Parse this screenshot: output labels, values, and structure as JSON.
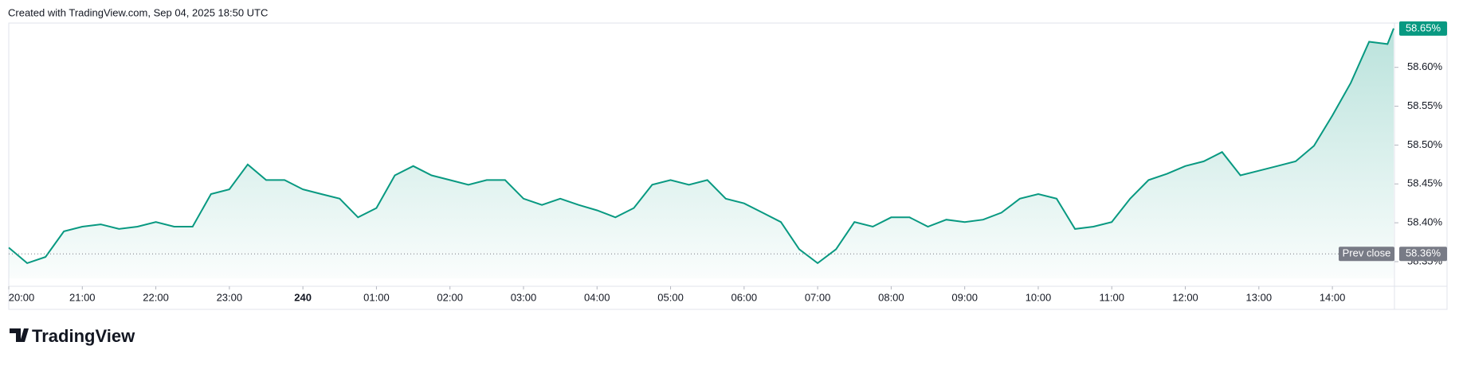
{
  "header": "Created with TradingView.com, Sep 04, 2025 18:50 UTC",
  "brand": "TradingView",
  "chart_data": {
    "type": "area",
    "color": "#089981",
    "x": [
      0,
      15,
      30,
      45,
      60,
      75,
      90,
      105,
      120,
      135,
      150,
      165,
      180,
      195,
      210,
      225,
      240,
      255,
      270,
      285,
      300,
      315,
      330,
      345,
      360,
      375,
      390,
      405,
      420,
      435,
      450,
      465,
      480,
      495,
      510,
      525,
      540,
      555,
      570,
      585,
      600,
      615,
      630,
      645,
      660,
      675,
      690,
      705,
      720,
      735,
      750,
      765,
      780,
      795,
      810,
      825,
      840,
      855,
      870,
      885,
      900,
      915,
      930,
      945,
      960,
      975,
      990,
      1005,
      1020,
      1035,
      1050,
      1065,
      1080,
      1095,
      1110,
      1125,
      1130
    ],
    "values": [
      58.368,
      58.348,
      58.356,
      58.389,
      58.395,
      58.398,
      58.392,
      58.395,
      58.401,
      58.395,
      58.395,
      58.437,
      58.443,
      58.475,
      58.455,
      58.455,
      58.443,
      58.437,
      58.431,
      58.407,
      58.419,
      58.461,
      58.473,
      58.461,
      58.455,
      58.449,
      58.455,
      58.455,
      58.431,
      58.423,
      58.431,
      58.423,
      58.416,
      58.407,
      58.419,
      58.449,
      58.455,
      58.449,
      58.455,
      58.431,
      58.425,
      58.413,
      58.401,
      58.366,
      58.348,
      58.366,
      58.401,
      58.395,
      58.407,
      58.407,
      58.395,
      58.404,
      58.401,
      58.404,
      58.413,
      58.431,
      58.437,
      58.431,
      58.392,
      58.395,
      58.401,
      58.431,
      58.455,
      58.463,
      58.473,
      58.479,
      58.491,
      58.461,
      58.467,
      58.473,
      58.479,
      58.499,
      58.538,
      58.58,
      58.633,
      58.63,
      58.65
    ],
    "last_label": "58.65%",
    "prev_close": {
      "label": "Prev close",
      "value": 58.36,
      "value_label": "58.36%"
    },
    "xlim": [
      0,
      1130
    ],
    "xticks": [
      {
        "value": 0,
        "label": "20:00"
      },
      {
        "value": 60,
        "label": "21:00"
      },
      {
        "value": 120,
        "label": "22:00"
      },
      {
        "value": 180,
        "label": "23:00"
      },
      240,
      {
        "value": 300,
        "label": "01:00"
      },
      {
        "value": 360,
        "label": "02:00"
      },
      {
        "value": 420,
        "label": "03:00"
      },
      {
        "value": 480,
        "label": "04:00"
      },
      {
        "value": 540,
        "label": "05:00"
      },
      {
        "value": 600,
        "label": "06:00"
      },
      {
        "value": 660,
        "label": "07:00"
      },
      {
        "value": 720,
        "label": "08:00"
      },
      {
        "value": 780,
        "label": "09:00"
      },
      {
        "value": 840,
        "label": "10:00"
      },
      {
        "value": 900,
        "label": "11:00"
      },
      {
        "value": 960,
        "label": "12:00"
      },
      {
        "value": 1020,
        "label": "13:00"
      },
      {
        "value": 1080,
        "label": "14:00"
      }
    ],
    "ylim": [
      58.3285,
      58.657
    ],
    "yticks": [
      {
        "value": 58.35,
        "label": "58.35%"
      },
      {
        "value": 58.4,
        "label": "58.40%"
      },
      {
        "value": 58.45,
        "label": "58.45%"
      },
      {
        "value": 58.5,
        "label": "58.50%"
      },
      {
        "value": 58.55,
        "label": "58.55%"
      },
      {
        "value": 58.6,
        "label": "58.60%"
      }
    ]
  }
}
